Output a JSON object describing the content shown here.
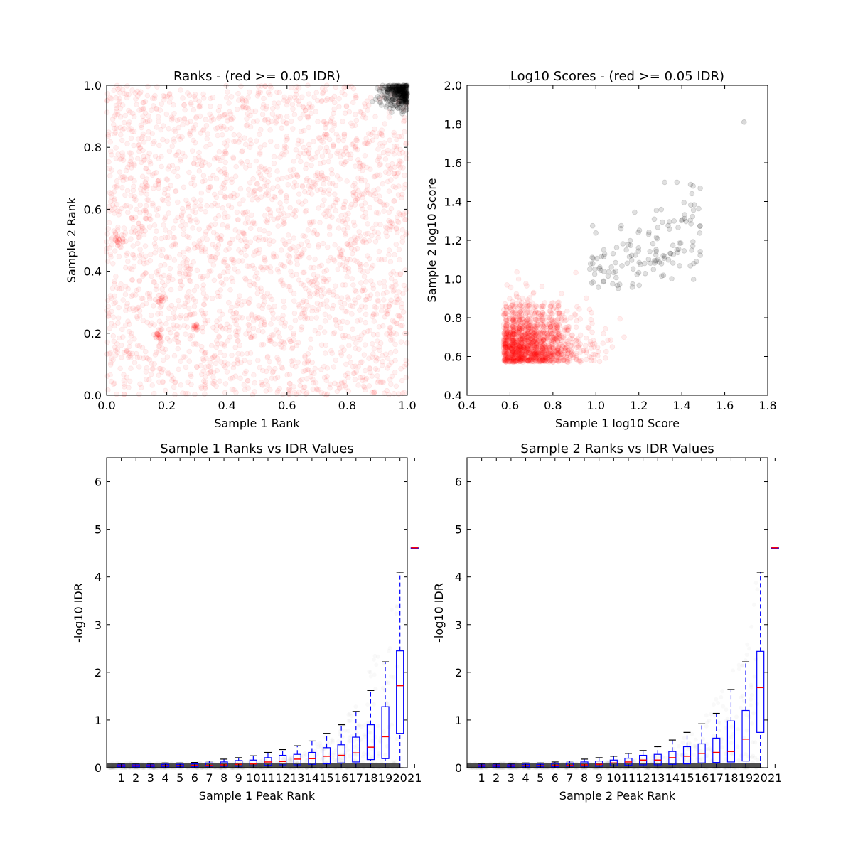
{
  "chart_data": [
    {
      "id": "ranks",
      "type": "scatter",
      "title": "Ranks - (red >= 0.05 IDR)",
      "xlabel": "Sample 1 Rank",
      "ylabel": "Sample 2 Rank",
      "xlim": [
        0.0,
        1.0
      ],
      "ylim": [
        0.0,
        1.0
      ],
      "xticks": [
        0.0,
        0.2,
        0.4,
        0.6,
        0.8,
        1.0
      ],
      "yticks": [
        0.0,
        0.2,
        0.4,
        0.6,
        0.8,
        1.0
      ],
      "tick_decimals": 1,
      "colors": {
        "pass": "#000000",
        "fail": "#ff0000"
      },
      "n_fail_points": 2600,
      "grey_region": {
        "x_min": 0.86,
        "y_min": 0.86,
        "dense_corner": [
          1.0,
          1.0
        ]
      },
      "clusters": [
        [
          0.04,
          0.5
        ],
        [
          0.17,
          0.19
        ],
        [
          0.3,
          0.22
        ],
        [
          0.18,
          0.31
        ]
      ]
    },
    {
      "id": "scores",
      "type": "scatter",
      "title": "Log10 Scores - (red >= 0.05 IDR)",
      "xlabel": "Sample 1 log10 Score",
      "ylabel": "Sample 2 log10 Score",
      "xlim": [
        0.4,
        1.8
      ],
      "ylim": [
        0.4,
        2.0
      ],
      "xticks": [
        0.4,
        0.6,
        0.8,
        1.0,
        1.2,
        1.4,
        1.6,
        1.8
      ],
      "yticks": [
        0.4,
        0.6,
        0.8,
        1.0,
        1.2,
        1.4,
        1.6,
        1.8,
        2.0
      ],
      "tick_decimals": 1,
      "colors": {
        "pass": "#000000",
        "fail": "#ff0000"
      },
      "red_bulk": {
        "x_range": [
          0.57,
          1.02
        ],
        "y_range": [
          0.57,
          1.0
        ]
      },
      "grey_region": {
        "x_range": [
          0.96,
          1.5
        ],
        "y_range": [
          0.95,
          1.6
        ]
      },
      "outlier": [
        1.69,
        1.81
      ]
    },
    {
      "id": "s1box",
      "type": "box",
      "title": "Sample 1 Ranks vs IDR Values",
      "xlabel": "Sample 1 Peak Rank",
      "ylabel": "-log10 IDR",
      "ylim": [
        0,
        6.5
      ],
      "yticks": [
        0,
        1,
        2,
        3,
        4,
        5,
        6
      ],
      "categories": [
        "1",
        "2",
        "3",
        "4",
        "5",
        "6",
        "7",
        "8",
        "9",
        "10",
        "11",
        "12",
        "13",
        "14",
        "15",
        "16",
        "17",
        "18",
        "19",
        "20",
        "21"
      ],
      "colors": {
        "box": "#0000ff",
        "median": "#ff0000",
        "cap": "#000000"
      },
      "boxes": [
        {
          "q1": 0.02,
          "med": 0.04,
          "q3": 0.06,
          "wl": 0.0,
          "wh": 0.09
        },
        {
          "q1": 0.02,
          "med": 0.04,
          "q3": 0.06,
          "wl": 0.0,
          "wh": 0.09
        },
        {
          "q1": 0.02,
          "med": 0.04,
          "q3": 0.06,
          "wl": 0.0,
          "wh": 0.09
        },
        {
          "q1": 0.02,
          "med": 0.04,
          "q3": 0.07,
          "wl": 0.0,
          "wh": 0.1
        },
        {
          "q1": 0.02,
          "med": 0.04,
          "q3": 0.07,
          "wl": 0.0,
          "wh": 0.1
        },
        {
          "q1": 0.02,
          "med": 0.05,
          "q3": 0.08,
          "wl": 0.0,
          "wh": 0.11
        },
        {
          "q1": 0.03,
          "med": 0.05,
          "q3": 0.1,
          "wl": 0.0,
          "wh": 0.14
        },
        {
          "q1": 0.03,
          "med": 0.06,
          "q3": 0.12,
          "wl": 0.0,
          "wh": 0.18
        },
        {
          "q1": 0.03,
          "med": 0.07,
          "q3": 0.15,
          "wl": 0.0,
          "wh": 0.21
        },
        {
          "q1": 0.04,
          "med": 0.08,
          "q3": 0.16,
          "wl": 0.0,
          "wh": 0.25
        },
        {
          "q1": 0.05,
          "med": 0.12,
          "q3": 0.21,
          "wl": 0.0,
          "wh": 0.32
        },
        {
          "q1": 0.06,
          "med": 0.13,
          "q3": 0.26,
          "wl": 0.0,
          "wh": 0.38
        },
        {
          "q1": 0.06,
          "med": 0.18,
          "q3": 0.28,
          "wl": 0.0,
          "wh": 0.46
        },
        {
          "q1": 0.07,
          "med": 0.19,
          "q3": 0.32,
          "wl": 0.0,
          "wh": 0.56
        },
        {
          "q1": 0.08,
          "med": 0.24,
          "q3": 0.42,
          "wl": 0.0,
          "wh": 0.72
        },
        {
          "q1": 0.1,
          "med": 0.26,
          "q3": 0.48,
          "wl": 0.0,
          "wh": 0.9
        },
        {
          "q1": 0.12,
          "med": 0.31,
          "q3": 0.64,
          "wl": 0.0,
          "wh": 1.18
        },
        {
          "q1": 0.17,
          "med": 0.43,
          "q3": 0.9,
          "wl": 0.0,
          "wh": 1.62
        },
        {
          "q1": 0.19,
          "med": 0.65,
          "q3": 1.28,
          "wl": 0.0,
          "wh": 2.22
        },
        {
          "q1": 0.72,
          "med": 1.72,
          "q3": 2.45,
          "wl": 0.0,
          "wh": 4.1
        },
        {
          "q1": 4.61,
          "med": 4.61,
          "q3": 4.61,
          "wl": 4.61,
          "wh": 4.61
        }
      ]
    },
    {
      "id": "s2box",
      "type": "box",
      "title": "Sample 2 Ranks vs IDR Values",
      "xlabel": "Sample 2 Peak Rank",
      "ylabel": "-log10 IDR",
      "ylim": [
        0,
        6.5
      ],
      "yticks": [
        0,
        1,
        2,
        3,
        4,
        5,
        6
      ],
      "categories": [
        "1",
        "2",
        "3",
        "4",
        "5",
        "6",
        "7",
        "8",
        "9",
        "10",
        "11",
        "12",
        "13",
        "14",
        "15",
        "16",
        "17",
        "18",
        "19",
        "20",
        "21"
      ],
      "colors": {
        "box": "#0000ff",
        "median": "#ff0000",
        "cap": "#000000"
      },
      "boxes": [
        {
          "q1": 0.02,
          "med": 0.04,
          "q3": 0.06,
          "wl": 0.0,
          "wh": 0.09
        },
        {
          "q1": 0.02,
          "med": 0.04,
          "q3": 0.06,
          "wl": 0.0,
          "wh": 0.09
        },
        {
          "q1": 0.02,
          "med": 0.04,
          "q3": 0.06,
          "wl": 0.0,
          "wh": 0.09
        },
        {
          "q1": 0.02,
          "med": 0.04,
          "q3": 0.07,
          "wl": 0.0,
          "wh": 0.1
        },
        {
          "q1": 0.02,
          "med": 0.04,
          "q3": 0.07,
          "wl": 0.0,
          "wh": 0.1
        },
        {
          "q1": 0.02,
          "med": 0.05,
          "q3": 0.09,
          "wl": 0.0,
          "wh": 0.12
        },
        {
          "q1": 0.03,
          "med": 0.05,
          "q3": 0.1,
          "wl": 0.0,
          "wh": 0.14
        },
        {
          "q1": 0.03,
          "med": 0.06,
          "q3": 0.12,
          "wl": 0.0,
          "wh": 0.18
        },
        {
          "q1": 0.03,
          "med": 0.07,
          "q3": 0.14,
          "wl": 0.0,
          "wh": 0.21
        },
        {
          "q1": 0.04,
          "med": 0.1,
          "q3": 0.16,
          "wl": 0.0,
          "wh": 0.24
        },
        {
          "q1": 0.05,
          "med": 0.12,
          "q3": 0.2,
          "wl": 0.0,
          "wh": 0.3
        },
        {
          "q1": 0.06,
          "med": 0.16,
          "q3": 0.26,
          "wl": 0.0,
          "wh": 0.36
        },
        {
          "q1": 0.06,
          "med": 0.16,
          "q3": 0.28,
          "wl": 0.0,
          "wh": 0.44
        },
        {
          "q1": 0.07,
          "med": 0.21,
          "q3": 0.34,
          "wl": 0.0,
          "wh": 0.58
        },
        {
          "q1": 0.08,
          "med": 0.24,
          "q3": 0.44,
          "wl": 0.0,
          "wh": 0.74
        },
        {
          "q1": 0.1,
          "med": 0.3,
          "q3": 0.5,
          "wl": 0.0,
          "wh": 0.92
        },
        {
          "q1": 0.11,
          "med": 0.32,
          "q3": 0.62,
          "wl": 0.0,
          "wh": 1.14
        },
        {
          "q1": 0.12,
          "med": 0.34,
          "q3": 0.98,
          "wl": 0.0,
          "wh": 1.64
        },
        {
          "q1": 0.14,
          "med": 0.6,
          "q3": 1.2,
          "wl": 0.0,
          "wh": 2.22
        },
        {
          "q1": 0.74,
          "med": 1.68,
          "q3": 2.44,
          "wl": 0.0,
          "wh": 4.1
        },
        {
          "q1": 4.61,
          "med": 4.61,
          "q3": 4.61,
          "wl": 4.61,
          "wh": 4.61
        }
      ]
    }
  ]
}
